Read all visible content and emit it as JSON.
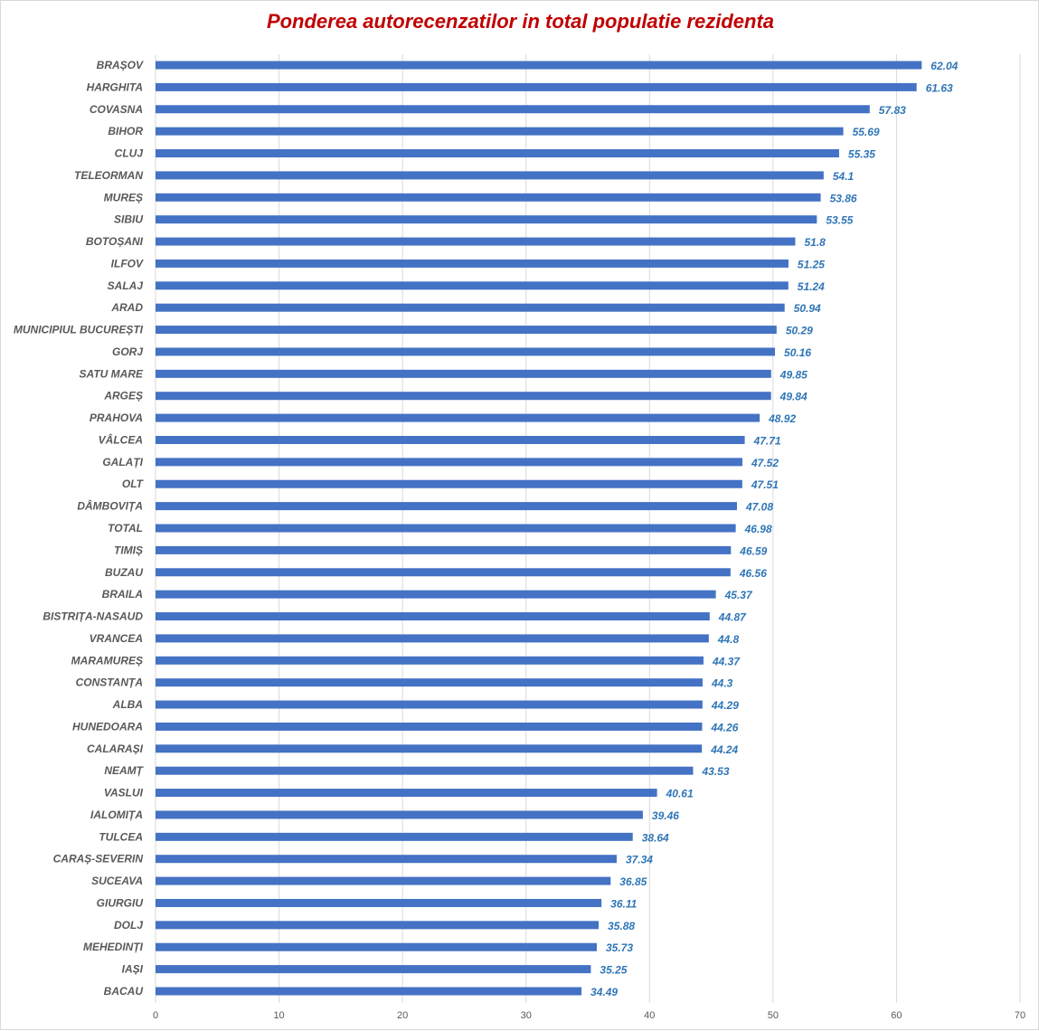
{
  "colors": {
    "bar": "#4472C4",
    "title": "#C00000",
    "value_label": "#2E75B6",
    "grid": "#d9d9d9"
  },
  "chart_data": {
    "type": "bar",
    "orientation": "horizontal",
    "title": "Ponderea autorecenzatilor in total populatie rezidenta",
    "xlim": [
      0,
      70
    ],
    "xticks": [
      0,
      10,
      20,
      30,
      40,
      50,
      60,
      70
    ],
    "grid": "vertical",
    "legend": "none",
    "categories": [
      "BRAȘOV",
      "HARGHITA",
      "COVASNA",
      "BIHOR",
      "CLUJ",
      "TELEORMAN",
      "MUREȘ",
      "SIBIU",
      "BOTOȘANI",
      "ILFOV",
      "SALAJ",
      "ARAD",
      "MUNICIPIUL BUCUREȘTI",
      "GORJ",
      "SATU MARE",
      "ARGEȘ",
      "PRAHOVA",
      "VÂLCEA",
      "GALAȚI",
      "OLT",
      "DÂMBOVIȚA",
      "TOTAL",
      "TIMIȘ",
      "BUZAU",
      "BRAILA",
      "BISTRIȚA-NASAUD",
      "VRANCEA",
      "MARAMUREȘ",
      "CONSTANȚA",
      "ALBA",
      "HUNEDOARA",
      "CALARAȘI",
      "NEAMȚ",
      "VASLUI",
      "IALOMIȚA",
      "TULCEA",
      "CARAȘ-SEVERIN",
      "SUCEAVA",
      "GIURGIU",
      "DOLJ",
      "MEHEDINȚI",
      "IAȘI",
      "BACAU"
    ],
    "values": [
      62.04,
      61.63,
      57.83,
      55.69,
      55.35,
      54.1,
      53.86,
      53.55,
      51.8,
      51.25,
      51.24,
      50.94,
      50.29,
      50.16,
      49.85,
      49.84,
      48.92,
      47.71,
      47.52,
      47.51,
      47.08,
      46.98,
      46.59,
      46.56,
      45.37,
      44.87,
      44.8,
      44.37,
      44.3,
      44.29,
      44.26,
      44.24,
      43.53,
      40.61,
      39.46,
      38.64,
      37.34,
      36.85,
      36.11,
      35.88,
      35.73,
      35.25,
      34.49
    ]
  }
}
